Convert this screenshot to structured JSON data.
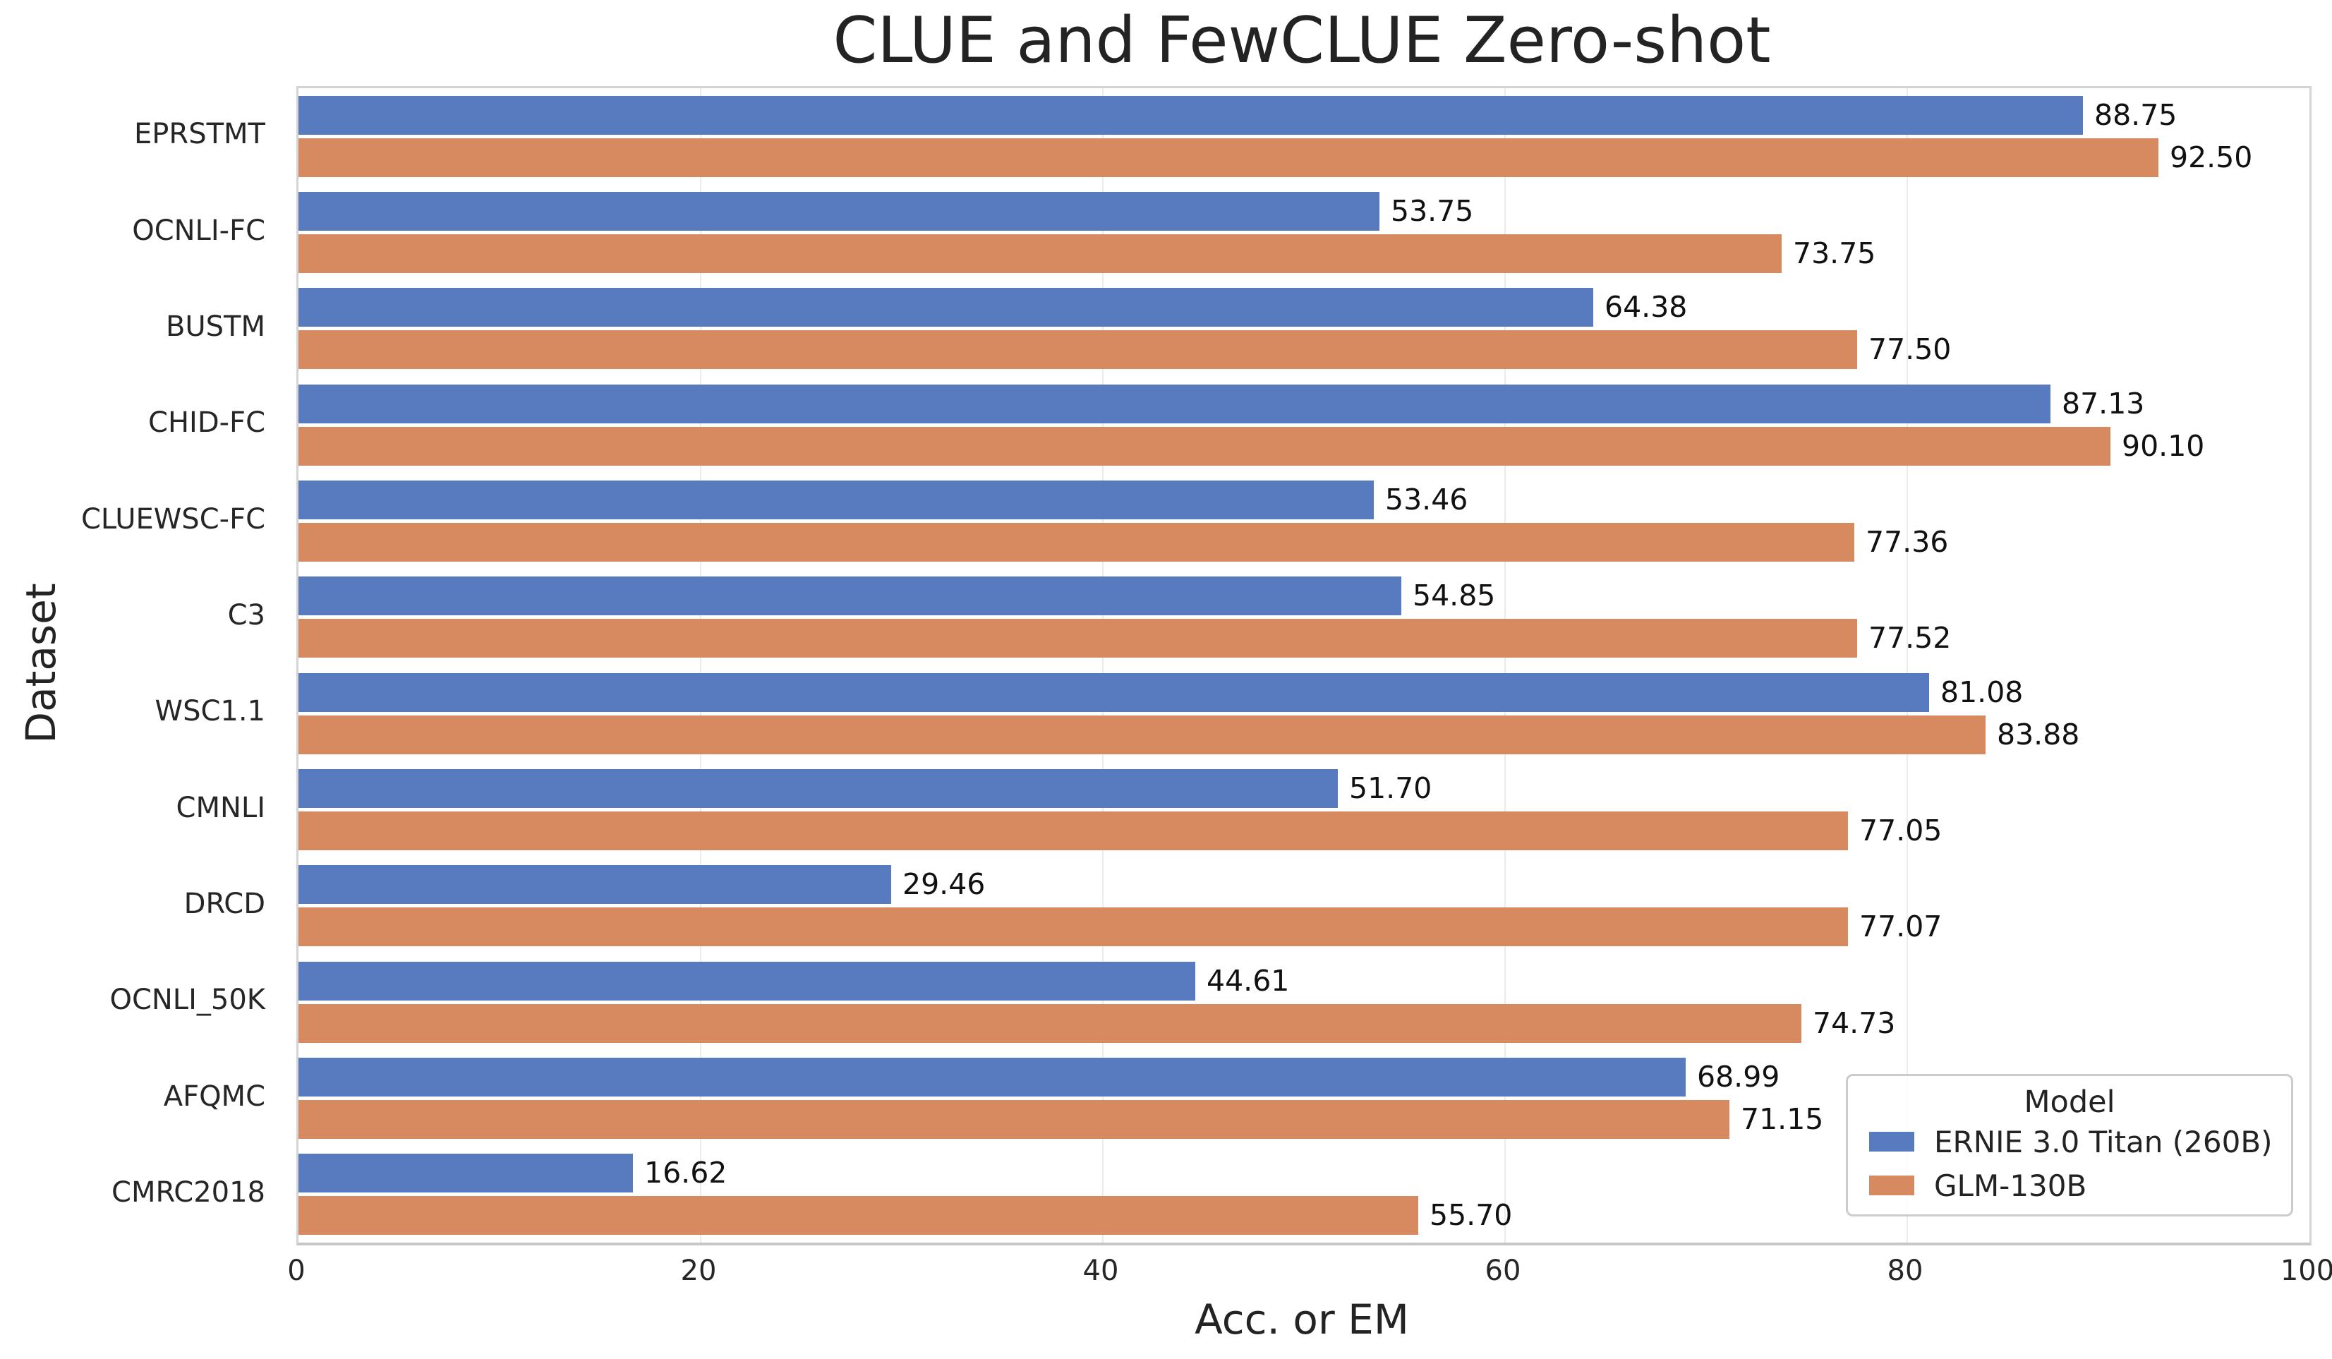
{
  "chart_data": {
    "type": "bar",
    "orientation": "horizontal",
    "title": "CLUE and FewCLUE Zero-shot",
    "xlabel": "Acc. or EM",
    "ylabel": "Dataset",
    "xlim": [
      0,
      100
    ],
    "x_ticks": [
      0,
      20,
      40,
      60,
      80,
      100
    ],
    "grid": "vertical light gray lines at each x tick",
    "value_labels": "each bar labeled with value to 2 decimal places",
    "categories": [
      "EPRSTMT",
      "OCNLI-FC",
      "BUSTM",
      "CHID-FC",
      "CLUEWSC-FC",
      "C3",
      "WSC1.1",
      "CMNLI",
      "DRCD",
      "OCNLI_50K",
      "AFQMC",
      "CMRC2018"
    ],
    "series": [
      {
        "name": "ERNIE 3.0 Titan (260B)",
        "color": "#587abe",
        "values": [
          88.75,
          53.75,
          64.38,
          87.13,
          53.46,
          54.85,
          81.08,
          51.7,
          29.46,
          44.61,
          68.99,
          16.62
        ]
      },
      {
        "name": "GLM-130B",
        "color": "#d78a5f",
        "values": [
          92.5,
          73.75,
          77.5,
          90.1,
          77.36,
          77.52,
          83.88,
          77.05,
          77.07,
          74.73,
          71.15,
          55.7
        ]
      }
    ],
    "legend": {
      "title": "Model",
      "position": "lower right"
    }
  }
}
